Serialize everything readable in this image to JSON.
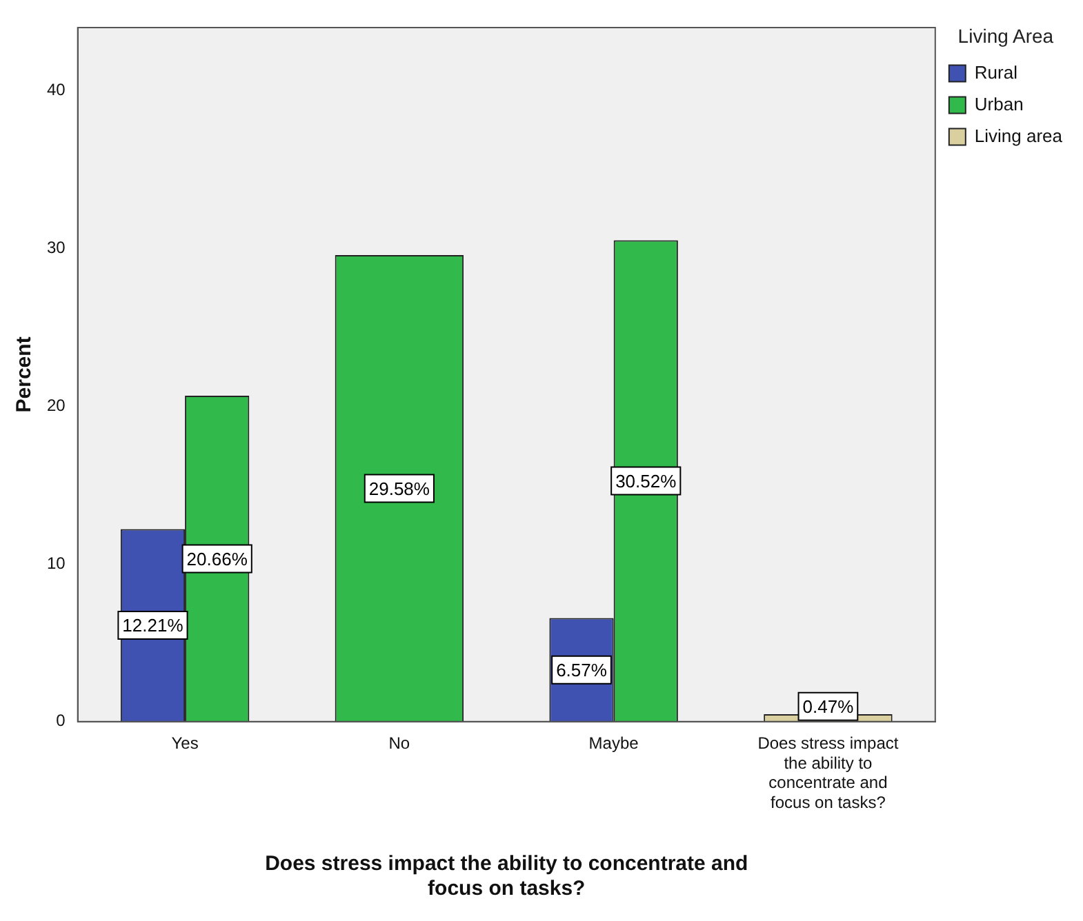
{
  "chart_data": {
    "type": "bar",
    "xlabel": "Does stress impact the ability to concentrate and focus on tasks?",
    "ylabel": "Percent",
    "legend_title": "Living Area",
    "categories": [
      "Yes",
      "No",
      "Maybe",
      "Does stress impact the ability to concentrate and focus on tasks?"
    ],
    "series": [
      {
        "name": "Rural",
        "color": "#3f51b1",
        "values": [
          12.21,
          null,
          6.57,
          null
        ],
        "value_labels": [
          "12.21%",
          null,
          "6.57%",
          null
        ]
      },
      {
        "name": "Urban",
        "color": "#31b94b",
        "values": [
          20.66,
          29.58,
          30.52,
          null
        ],
        "value_labels": [
          "20.66%",
          "29.58%",
          "30.52%",
          null
        ]
      },
      {
        "name": "Living area",
        "color": "#d9cf9f",
        "values": [
          null,
          null,
          null,
          0.47
        ],
        "value_labels": [
          null,
          null,
          null,
          "0.47%"
        ]
      }
    ],
    "ylim": [
      0,
      44
    ],
    "yticks": [
      0,
      10,
      20,
      30,
      40
    ],
    "grid": false,
    "legend": "top right"
  }
}
